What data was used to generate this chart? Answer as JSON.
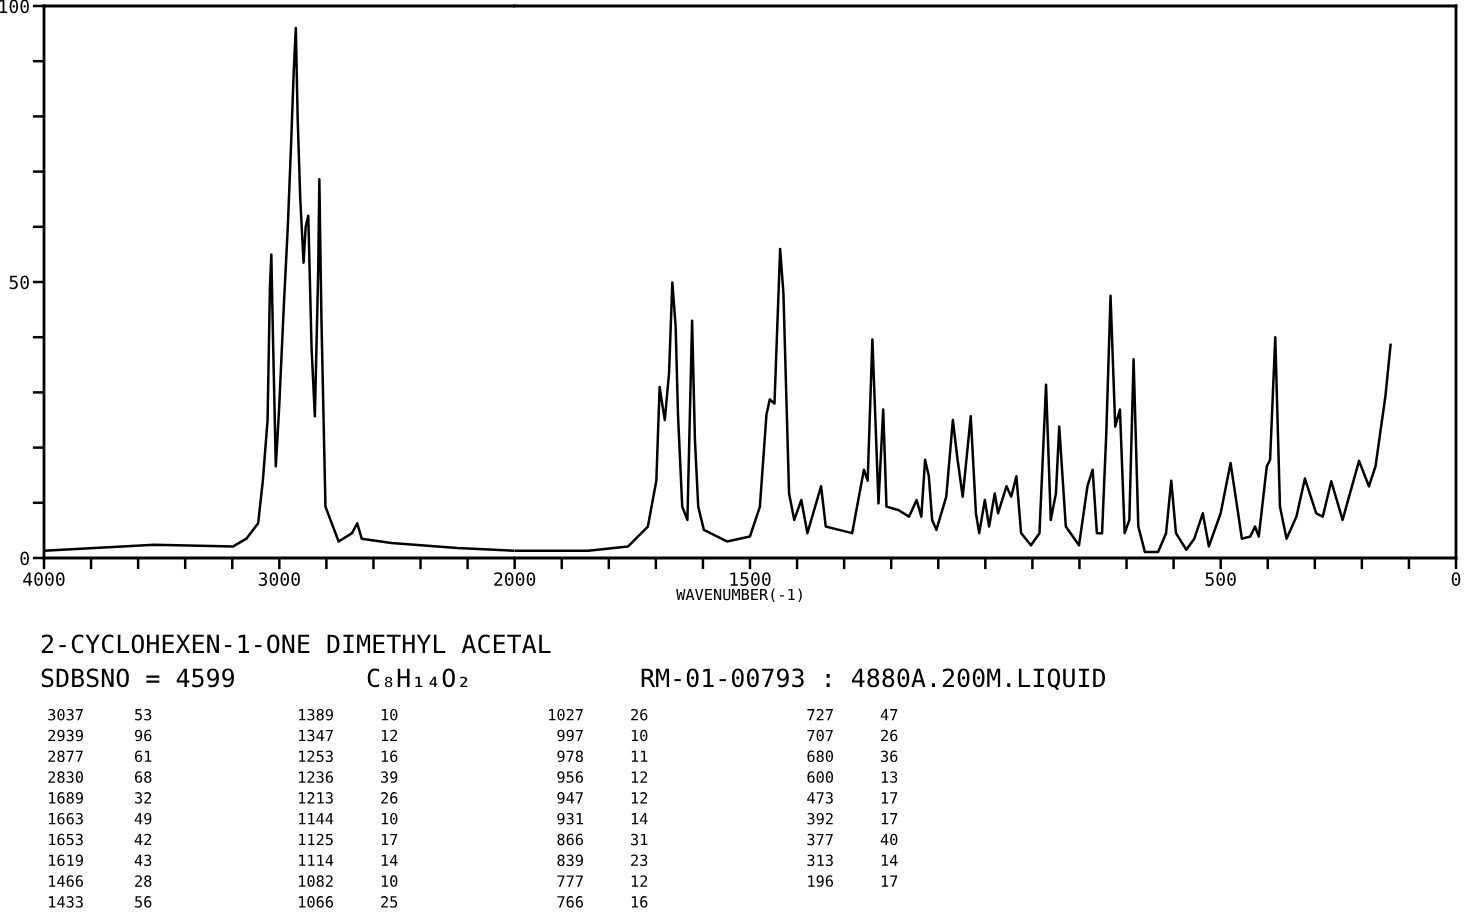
{
  "chart_data": [
    {
      "type": "line",
      "x": [
        4000,
        3532,
        3196,
        3140,
        3090,
        3070,
        3050,
        3040,
        3034,
        3027,
        3015,
        3001,
        2981,
        2964,
        2950,
        2939,
        2930,
        2922,
        2911,
        2897,
        2888,
        2877,
        2863,
        2849,
        2835,
        2830,
        2821,
        2804,
        2748,
        2691,
        2669,
        2650,
        2524,
        2244,
        2000
      ],
      "series": [
        {
          "color": "#000000",
          "values": [
            1.3,
            2.4,
            2.1,
            3.5,
            6.3,
            14,
            25,
            49,
            55,
            40,
            16.6,
            27,
            45.6,
            60,
            75,
            88,
            96,
            79.5,
            65,
            53.5,
            60,
            62,
            38,
            25.7,
            51.7,
            68.6,
            43,
            9.3,
            3,
            4.5,
            6.3,
            3.5,
            2.7,
            1.8,
            1.3
          ]
        }
      ],
      "xlim": [
        4000,
        2000
      ],
      "xticks": [
        4000,
        {
          "value": 3800,
          "label": null
        },
        {
          "value": 3600,
          "label": null
        },
        {
          "value": 3400,
          "label": null
        },
        {
          "value": 3200,
          "label": null
        },
        3000,
        {
          "value": 2800,
          "label": null
        },
        {
          "value": 2600,
          "label": null
        },
        {
          "value": 2400,
          "label": null
        },
        {
          "value": 2200,
          "label": null
        }
      ],
      "ylim": [
        0,
        100
      ],
      "yticks": [
        0,
        {
          "value": 10,
          "label": null
        },
        {
          "value": 20,
          "label": null
        },
        {
          "value": 30,
          "label": null
        },
        {
          "value": 40,
          "label": null
        },
        50,
        {
          "value": 60,
          "label": null
        },
        {
          "value": 70,
          "label": null
        },
        {
          "value": 80,
          "label": null
        },
        {
          "value": 90,
          "label": null
        },
        100
      ],
      "grid": false,
      "legend": false,
      "marker": "none",
      "line_style": "solid",
      "annotations": [
        "2-CYCLOHEXEN-1-ONE DIMETHYL ACETAL",
        "SDBSNO = 4599",
        "C₈H₁₄O₂",
        "RM-01-00793 : 4880A.200M.LIQUID",
        "3037",
        "53",
        "2939",
        "96",
        "2877",
        "61",
        "2830",
        "68",
        "1689",
        "32",
        "1663",
        "49",
        "1653",
        "42",
        "1619",
        "43",
        "1466",
        "28",
        "1433",
        "56",
        "1389",
        "10",
        "1347",
        "12",
        "1253",
        "16",
        "1236",
        "39",
        "1213",
        "26",
        "1144",
        "10",
        "1125",
        "17",
        "1114",
        "14",
        "1082",
        "10",
        "1066",
        "25",
        "1027",
        "26",
        "997",
        "10",
        "978",
        "11",
        "956",
        "12",
        "947",
        "12",
        "931",
        "14",
        "866",
        "31",
        "839",
        "23",
        "777",
        "12",
        "766",
        "16",
        "727",
        "47",
        "707",
        "26",
        "680",
        "36",
        "600",
        "13",
        "473",
        "17",
        "392",
        "17",
        "377",
        "40",
        "313",
        "14",
        "196",
        "17"
      ]
    },
    {
      "type": "line",
      "xlabel": "WAVENUMBER(-1)",
      "x": [
        2000,
        1844,
        1759,
        1717,
        1699,
        1692,
        1688,
        1681,
        1672,
        1665,
        1658,
        1653,
        1644,
        1633,
        1623,
        1617,
        1610,
        1598,
        1549,
        1500,
        1479,
        1465,
        1458,
        1448,
        1443,
        1436,
        1429,
        1417,
        1406,
        1391,
        1378,
        1349,
        1339,
        1311,
        1283,
        1258,
        1250,
        1240,
        1233,
        1227,
        1217,
        1210,
        1185,
        1162,
        1146,
        1136,
        1128,
        1120,
        1113,
        1104,
        1083,
        1069,
        1059,
        1048,
        1031,
        1020,
        1013,
        1001,
        992,
        980,
        973,
        955,
        945,
        934,
        924,
        903,
        885,
        871,
        861,
        850,
        843,
        829,
        801,
        783,
        772,
        763,
        752,
        743,
        734,
        724,
        714,
        704,
        694,
        685,
        675,
        661,
        633,
        616,
        605,
        595,
        573,
        556,
        538,
        525,
        500,
        479,
        465,
        455,
        437,
        427,
        419,
        402,
        395,
        384,
        374,
        360,
        339,
        321,
        297,
        283,
        265,
        241,
        206,
        185,
        171,
        150,
        139
      ],
      "series": [
        {
          "color": "#000000",
          "values": [
            1.3,
            1.3,
            2.1,
            5.7,
            14,
            31,
            28.7,
            25,
            33.5,
            49.9,
            42,
            26,
            9.3,
            6.9,
            43,
            21.4,
            9.3,
            5.1,
            3,
            3.9,
            9.3,
            26,
            28.7,
            28,
            39.6,
            56,
            48,
            11.7,
            6.9,
            10.5,
            4.5,
            13,
            5.7,
            5.1,
            4.5,
            16,
            14,
            39.6,
            23.8,
            9.9,
            26.9,
            9.3,
            8.7,
            7.5,
            10.5,
            7.5,
            17.8,
            14.8,
            6.9,
            5.1,
            11.1,
            25,
            17.8,
            11.1,
            25.7,
            8.1,
            4.5,
            10.5,
            5.7,
            11.7,
            8.1,
            13,
            11.1,
            14.8,
            4.5,
            2.3,
            4.5,
            31.4,
            6.9,
            11.7,
            23.8,
            5.7,
            2.3,
            13,
            16,
            4.5,
            4.5,
            22.6,
            47.5,
            23.8,
            26.9,
            4.5,
            6.9,
            36,
            5.7,
            1.1,
            1.1,
            4.5,
            14,
            4.5,
            1.5,
            3.5,
            8.1,
            2.1,
            8.1,
            17.2,
            9.3,
            3.5,
            3.9,
            5.7,
            3.9,
            16.6,
            17.8,
            40,
            9.3,
            3.5,
            7.5,
            14.4,
            8.1,
            7.5,
            13.9,
            6.9,
            17.6,
            13,
            16.6,
            29.3,
            38.6
          ]
        }
      ],
      "xlim": [
        2000,
        0
      ],
      "xticks": [
        2000,
        {
          "value": 1900,
          "label": null
        },
        {
          "value": 1800,
          "label": null
        },
        {
          "value": 1700,
          "label": null
        },
        {
          "value": 1600,
          "label": null
        },
        1500,
        {
          "value": 1400,
          "label": null
        },
        {
          "value": 1300,
          "label": null
        },
        {
          "value": 1200,
          "label": null
        },
        {
          "value": 1100,
          "label": null
        },
        {
          "value": 1000,
          "label": null
        },
        {
          "value": 900,
          "label": null
        },
        {
          "value": 800,
          "label": null
        },
        {
          "value": 700,
          "label": null
        },
        {
          "value": 600,
          "label": null
        },
        500,
        {
          "value": 400,
          "label": null
        },
        {
          "value": 300,
          "label": null
        },
        {
          "value": 200,
          "label": null
        },
        {
          "value": 100,
          "label": null
        },
        0
      ],
      "ylim": [
        0,
        100
      ],
      "tick_labels": "x",
      "grid": false,
      "legend": false,
      "marker": "none",
      "line_style": "solid"
    }
  ]
}
